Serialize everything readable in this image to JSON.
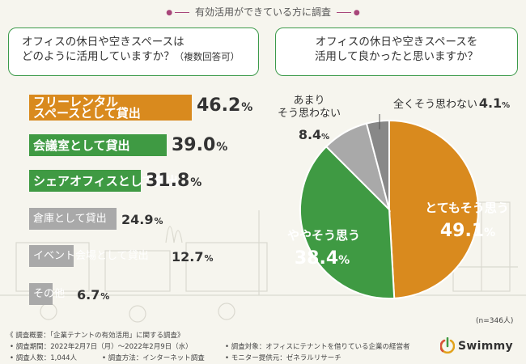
{
  "header": "有効活用ができている方に調査",
  "q1": {
    "line1": "オフィスの休日や空きスペースは",
    "line2": "どのように活用していますか？",
    "note": "（複数回答可）"
  },
  "q2": {
    "line1": "オフィスの休日や空きスペースを",
    "line2": "活用して良かったと思いますか？"
  },
  "pct_sign": "%",
  "colors": {
    "orange": "#d98a1e",
    "green": "#3f9a43",
    "gray": "#a9a9a9",
    "darkgray": "#888888"
  },
  "chart_data": [
    {
      "type": "bar",
      "orientation": "horizontal",
      "title": "オフィスの休日や空きスペースはどのように活用していますか？（複数回答可）",
      "unit": "%",
      "categories": [
        "フリーレンタルスペースとして貸出",
        "会議室として貸出",
        "シェアオフィスとして貸出",
        "倉庫として貸出",
        "イベント会場として貸出",
        "その他"
      ],
      "label_lines": [
        [
          "フリーレンタル",
          "スペースとして貸出"
        ],
        [
          "会議室として貸出"
        ],
        [
          "シェアオフィスとして貸出"
        ],
        [
          "倉庫として貸出"
        ],
        [
          "イベント会場として貸出"
        ],
        [
          "その他"
        ]
      ],
      "values": [
        46.2,
        39.0,
        31.8,
        24.9,
        12.7,
        6.7
      ]
    },
    {
      "type": "pie",
      "title": "オフィスの休日や空きスペースを活用して良かったと思いますか？",
      "unit": "%",
      "n_label": "(n=346人)",
      "slices": [
        {
          "name": "とてもそう思う",
          "lines": [
            "とてもそう思う"
          ],
          "value": 49.1
        },
        {
          "name": "ややそう思う",
          "lines": [
            "ややそう思う"
          ],
          "value": 38.4
        },
        {
          "name": "あまりそう思わない",
          "lines": [
            "あまり",
            "そう思わない"
          ],
          "value": 8.4
        },
        {
          "name": "全くそう思わない",
          "lines": [
            "全くそう思わない"
          ],
          "value": 4.1
        }
      ]
    }
  ],
  "footer": {
    "title": "《 調査概要：「企業テナントの有効活用」に関する調査》",
    "period": "• 調査期間：2022年2月7日（月）～2022年2月9日（水）",
    "count": "• 調査人数：1,044人",
    "method": "• 調査方法：インターネット調査",
    "target": "• 調査対象：オフィスにテナントを借りている企業の経営者",
    "provider": "• モニター提供元：ゼネラルリサーチ"
  },
  "logo": "Swimmy"
}
